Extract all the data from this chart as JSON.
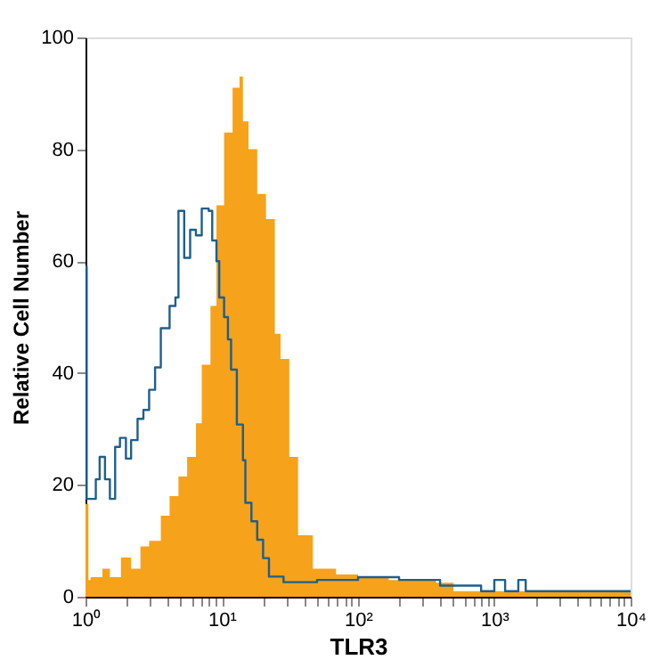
{
  "chart_data": {
    "type": "step",
    "xlabel": "TLR3",
    "ylabel": "Relative Cell Number",
    "log": "x",
    "grid": false,
    "xlim": [
      1,
      10000
    ],
    "ylim": [
      0,
      100
    ],
    "xticks": [
      {
        "value": 1,
        "label": "10⁰"
      },
      {
        "value": 2,
        "label": null
      },
      {
        "value": 3,
        "label": null
      },
      {
        "value": 4,
        "label": null
      },
      {
        "value": 5,
        "label": null
      },
      {
        "value": 6,
        "label": null
      },
      {
        "value": 7,
        "label": null
      },
      {
        "value": 8,
        "label": null
      },
      {
        "value": 9,
        "label": null
      },
      {
        "value": 10,
        "label": "10¹"
      },
      {
        "value": 20,
        "label": null
      },
      {
        "value": 30,
        "label": null
      },
      {
        "value": 40,
        "label": null
      },
      {
        "value": 50,
        "label": null
      },
      {
        "value": 60,
        "label": null
      },
      {
        "value": 70,
        "label": null
      },
      {
        "value": 80,
        "label": null
      },
      {
        "value": 90,
        "label": null
      },
      {
        "value": 100,
        "label": "10²"
      },
      {
        "value": 200,
        "label": null
      },
      {
        "value": 300,
        "label": null
      },
      {
        "value": 400,
        "label": null
      },
      {
        "value": 500,
        "label": null
      },
      {
        "value": 600,
        "label": null
      },
      {
        "value": 700,
        "label": null
      },
      {
        "value": 800,
        "label": null
      },
      {
        "value": 900,
        "label": null
      },
      {
        "value": 1000,
        "label": "10³"
      },
      {
        "value": 2000,
        "label": null
      },
      {
        "value": 3000,
        "label": null
      },
      {
        "value": 4000,
        "label": null
      },
      {
        "value": 5000,
        "label": null
      },
      {
        "value": 6000,
        "label": null
      },
      {
        "value": 7000,
        "label": null
      },
      {
        "value": 8000,
        "label": null
      },
      {
        "value": 9000,
        "label": null
      },
      {
        "value": 10000,
        "label": "10⁴"
      }
    ],
    "yticks": [
      0,
      20,
      40,
      60,
      80,
      100
    ],
    "series": [
      {
        "type": "area",
        "color": "#f7a21b",
        "x": [
          1,
          1.05,
          1.09,
          1.33,
          1.51,
          1.82,
          2.16,
          2.53,
          2.93,
          3.57,
          4.14,
          4.81,
          5.57,
          6.46,
          7.13,
          8.26,
          9.14,
          10.4,
          12.0,
          13.5,
          14.3,
          15.7,
          18.2,
          21.1,
          24.5,
          27,
          31.3,
          36.3,
          46.6,
          69,
          100,
          168,
          250,
          373,
          501,
          1000,
          2415,
          10000
        ],
        "values": [
          16.6,
          3,
          3.5,
          5,
          3.5,
          7,
          5,
          9,
          10,
          14.5,
          18,
          21.5,
          25,
          31,
          41.5,
          52,
          70,
          83,
          91,
          93,
          85,
          80,
          72,
          67.5,
          47,
          42.5,
          25,
          11,
          5,
          4,
          3.5,
          3,
          3.2,
          2.5,
          1,
          1,
          1,
          1
        ]
      },
      {
        "color": "#1f5f8b",
        "x": [
          1,
          1.02,
          1.19,
          1.27,
          1.39,
          1.51,
          1.65,
          1.79,
          1.98,
          2.16,
          2.41,
          2.66,
          2.93,
          3.24,
          3.57,
          4.14,
          4.57,
          4.81,
          5.3,
          5.86,
          6.46,
          7.13,
          8.02,
          8.51,
          9.14,
          9.58,
          10.4,
          11.1,
          11.7,
          12.9,
          14.3,
          14.9,
          16.5,
          18.2,
          20.1,
          22.2,
          28.4,
          50,
          100,
          200,
          400,
          800,
          1000,
          1200,
          1500,
          1700,
          10000
        ],
        "values": [
          59,
          17.5,
          21,
          25,
          21,
          17.5,
          26.8,
          28.4,
          24.7,
          28,
          31.8,
          33.4,
          37,
          41,
          48,
          52,
          53.5,
          69,
          60.6,
          65.6,
          64.6,
          69.4,
          69,
          63.7,
          60,
          53.5,
          50,
          46,
          40.6,
          30.8,
          24.4,
          16.8,
          13.5,
          10.2,
          6.9,
          3.6,
          2.6,
          3,
          3.5,
          3,
          2,
          1,
          3,
          1,
          3,
          1,
          1
        ]
      }
    ]
  }
}
